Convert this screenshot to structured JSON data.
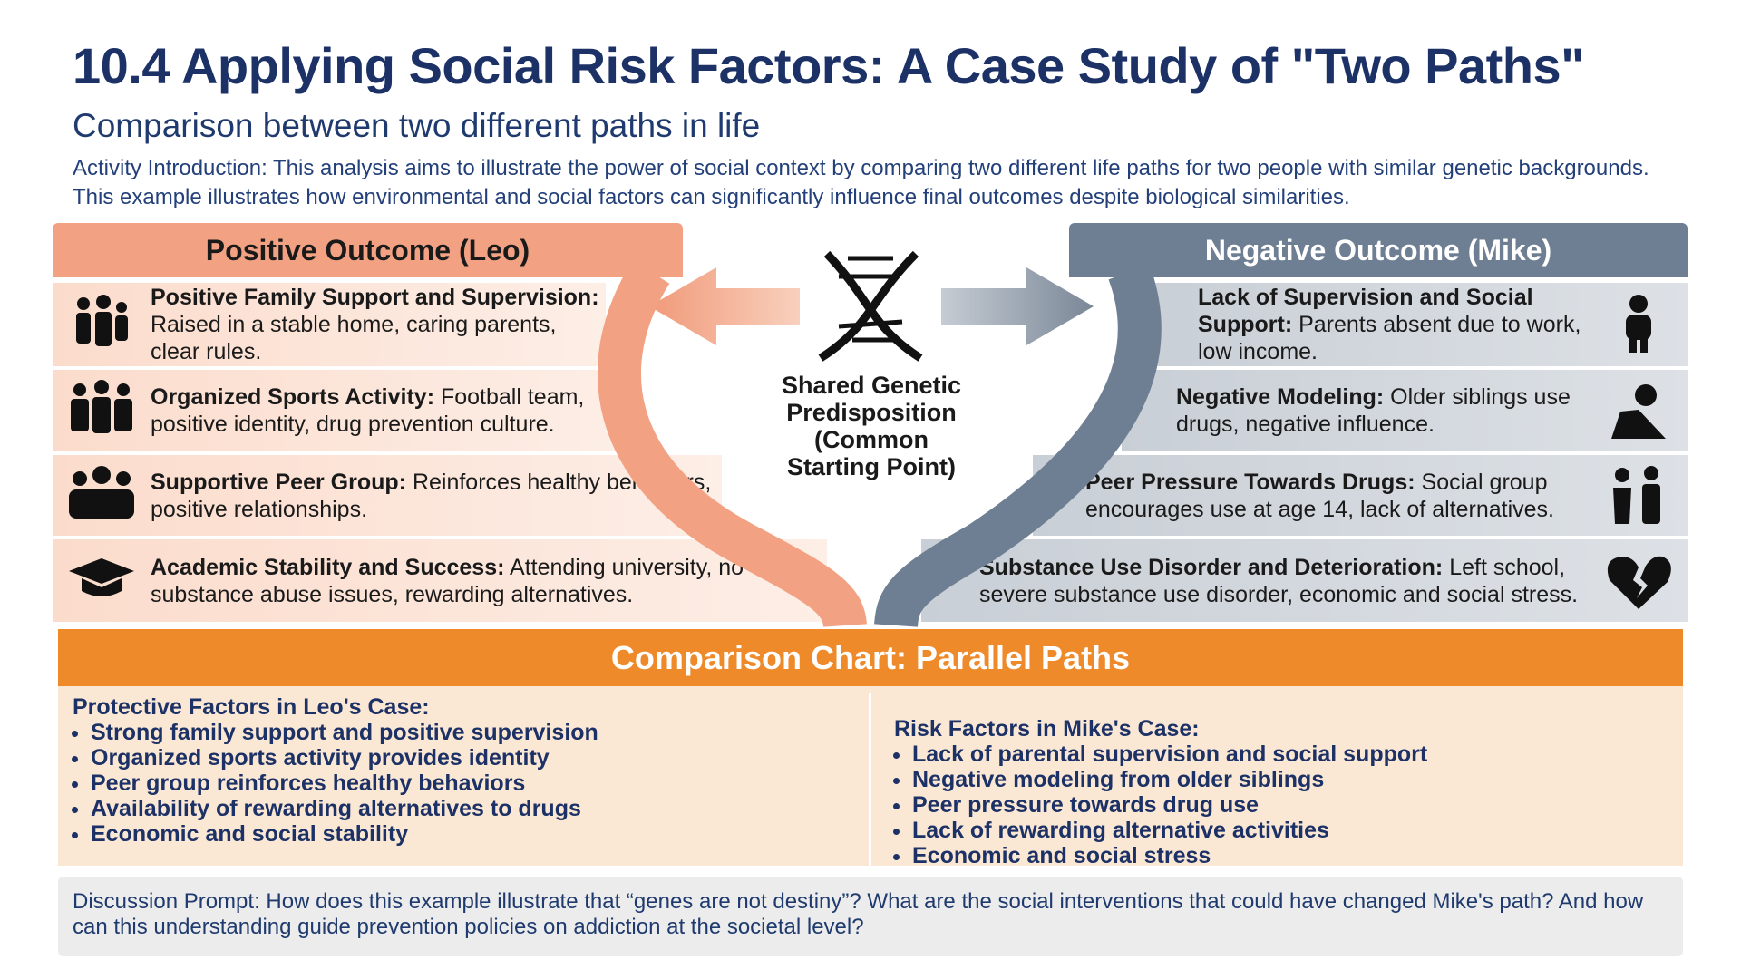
{
  "header": {
    "title": "10.4 Applying Social Risk Factors: A Case Study of \"Two Paths\"",
    "subtitle": "Comparison between two different paths in life",
    "intro": "Activity Introduction: This analysis aims to illustrate the power of social context by comparing two different life paths for two people with similar genetic backgrounds. This example illustrates how environmental and social factors can significantly influence final outcomes despite biological similarities."
  },
  "left": {
    "heading": "Positive Outcome (Leo)",
    "items": [
      {
        "title": "Positive Family Support and Supervision:",
        "text": "Raised in a stable home, caring parents, clear rules."
      },
      {
        "title": "Organized Sports Activity:",
        "text": "Football team, positive identity, drug prevention culture."
      },
      {
        "title": "Supportive Peer Group:",
        "text": "Reinforces healthy behaviors, positive relationships."
      },
      {
        "title": "Academic Stability and Success:",
        "text": "Attending university, no substance abuse issues, rewarding alternatives."
      }
    ]
  },
  "right": {
    "heading": "Negative Outcome (Mike)",
    "items": [
      {
        "title": "Lack of Supervision and Social Support:",
        "text": "Parents absent due to work, low income."
      },
      {
        "title": "Negative Modeling:",
        "text": "Older siblings use drugs, negative influence."
      },
      {
        "title": "Peer Pressure Towards Drugs:",
        "text": "Social group encourages use at age 14, lack of alternatives."
      },
      {
        "title": "Substance Use Disorder and Deterioration:",
        "text": "Left school, severe substance use disorder, economic and social stress."
      }
    ]
  },
  "center": {
    "label": "Shared Genetic Predisposition (Common Starting Point)"
  },
  "comparison": {
    "title": "Comparison Chart: Parallel Paths",
    "protective": {
      "title": "Protective Factors in Leo's Case:",
      "items": [
        "Strong family support and positive supervision",
        "Organized sports activity provides identity",
        "Peer group reinforces healthy behaviors",
        "Availability of rewarding alternatives to drugs",
        "Economic and social stability"
      ]
    },
    "risk": {
      "title": "Risk Factors in Mike's Case:",
      "items": [
        "Lack of parental supervision and social support",
        "Negative modeling from older siblings",
        "Peer pressure towards drug use",
        "Lack of rewarding alternative activities",
        "Economic and social stress"
      ]
    }
  },
  "discussion": {
    "prompt": "Discussion Prompt: How does this example illustrate that “genes are not destiny”? What are the social interventions that could have changed Mike's path? And how can this understanding guide prevention policies on addiction at the societal level?"
  }
}
